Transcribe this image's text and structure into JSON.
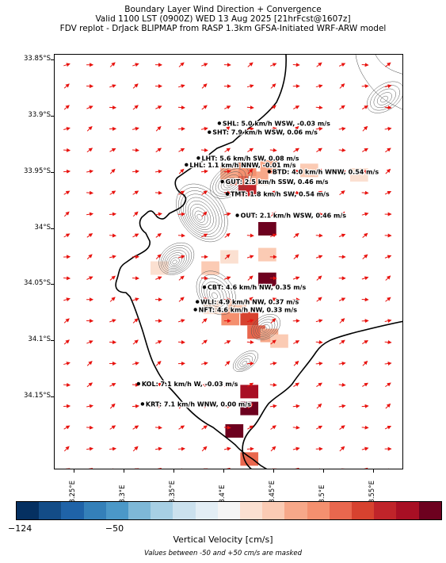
{
  "title": {
    "line1": "Boundary Layer Wind Direction + Convergence",
    "line2": "Valid 1100 LST (0900Z) WED 13 Aug 2025 [21hrFcst@1607z]",
    "line3": "FDV replot - DrJack BLIPMAP from RASP 1.3km GFSA-Initiated WRF-ARW model"
  },
  "axes": {
    "lon": {
      "min": 18.23,
      "max": 18.58
    },
    "lat": {
      "min": -34.215,
      "max": -33.845
    },
    "y_ticks": [
      {
        "value": -33.85,
        "label": "33.85°S"
      },
      {
        "value": -33.9,
        "label": "33.9°S"
      },
      {
        "value": -33.95,
        "label": "33.95°S"
      },
      {
        "value": -34.0,
        "label": "34°S"
      },
      {
        "value": -34.05,
        "label": "34.05°S"
      },
      {
        "value": -34.1,
        "label": "34.1°S"
      },
      {
        "value": -34.15,
        "label": "34.15°S"
      }
    ],
    "x_ticks": [
      {
        "value": 18.25,
        "label": "18.25°E"
      },
      {
        "value": 18.3,
        "label": "18.3°E"
      },
      {
        "value": 18.35,
        "label": "18.35°E"
      },
      {
        "value": 18.4,
        "label": "18.4°E"
      },
      {
        "value": 18.45,
        "label": "18.45°E"
      },
      {
        "value": 18.5,
        "label": "18.5°E"
      },
      {
        "value": 18.55,
        "label": "18.55°E"
      }
    ]
  },
  "stations": [
    {
      "name": "SHL",
      "text": "SHL: 5.0 km/h WSW, -0.03 m/s",
      "lon": 18.395,
      "lat": -33.906
    },
    {
      "name": "SHT",
      "text": "SHT: 7.9 km/h WSW, 0.06 m/s",
      "lon": 18.385,
      "lat": -33.914
    },
    {
      "name": "LHT",
      "text": "LHT: 5.6 km/h SW, 0.08 m/s",
      "lon": 18.374,
      "lat": -33.937
    },
    {
      "name": "LHL",
      "text": "LHL: 1.1 km/h NNW, -0.01 m/s",
      "lon": 18.362,
      "lat": -33.943
    },
    {
      "name": "BTD",
      "text": "BTD: 4.0 km/h WNW, 0.54 m/s",
      "lon": 18.445,
      "lat": -33.949
    },
    {
      "name": "GUT",
      "text": "GUT: 2.5 km/h SSW, 0.46 m/s",
      "lon": 18.398,
      "lat": -33.958
    },
    {
      "name": "TMT",
      "text": "TMT: 1.8 km/h SW, 0.54 m/s",
      "lon": 18.403,
      "lat": -33.969
    },
    {
      "name": "OUT",
      "text": "OUT: 2.1 km/h WSW, 0.46 m/s",
      "lon": 18.413,
      "lat": -33.988
    },
    {
      "name": "CBT",
      "text": "CBT: 4.6 km/h NW, 0.35 m/s",
      "lon": 18.38,
      "lat": -34.052
    },
    {
      "name": "WLI",
      "text": "WLI: 4.9 km/h NW, 0.37 m/s",
      "lon": 18.373,
      "lat": -34.065
    },
    {
      "name": "NFT",
      "text": "NFT: 4.6 km/h NW, 0.33 m/s",
      "lon": 18.371,
      "lat": -34.072
    },
    {
      "name": "KOL",
      "text": "KOL: 7.1 km/h W, -0.03 m/s",
      "lon": 18.314,
      "lat": -34.138
    },
    {
      "name": "KRT",
      "text": "KRT: 7.1 km/h WNW, 0.00 m/s",
      "lon": 18.318,
      "lat": -34.156
    }
  ],
  "convergence_cells": [
    {
      "lon": 18.443,
      "lat": -34.0,
      "value": 260
    },
    {
      "lon": 18.443,
      "lat": -34.045,
      "value": 200
    },
    {
      "lon": 18.423,
      "lat": -33.965,
      "value": 160
    },
    {
      "lon": 18.415,
      "lat": -33.955,
      "value": 120
    },
    {
      "lon": 18.435,
      "lat": -33.955,
      "value": 95
    },
    {
      "lon": 18.405,
      "lat": -33.95,
      "value": 85
    },
    {
      "lon": 18.423,
      "lat": -33.947,
      "value": 110
    },
    {
      "lon": 18.445,
      "lat": -33.945,
      "value": 90
    },
    {
      "lon": 18.485,
      "lat": -33.948,
      "value": 80
    },
    {
      "lon": 18.535,
      "lat": -33.952,
      "value": 60
    },
    {
      "lon": 18.443,
      "lat": -34.023,
      "value": 80
    },
    {
      "lon": 18.405,
      "lat": -34.025,
      "value": 60
    },
    {
      "lon": 18.386,
      "lat": -34.035,
      "value": 70
    },
    {
      "lon": 18.335,
      "lat": -34.035,
      "value": 55
    },
    {
      "lon": 18.388,
      "lat": -34.07,
      "value": 60
    },
    {
      "lon": 18.413,
      "lat": -34.07,
      "value": 75
    },
    {
      "lon": 18.406,
      "lat": -34.08,
      "value": 110
    },
    {
      "lon": 18.425,
      "lat": -34.08,
      "value": 150
    },
    {
      "lon": 18.432,
      "lat": -34.092,
      "value": 130
    },
    {
      "lon": 18.445,
      "lat": -34.095,
      "value": 100
    },
    {
      "lon": 18.455,
      "lat": -34.1,
      "value": 80
    },
    {
      "lon": 18.425,
      "lat": -34.145,
      "value": 180
    },
    {
      "lon": 18.425,
      "lat": -34.16,
      "value": 240
    },
    {
      "lon": 18.41,
      "lat": -34.18,
      "value": 220
    },
    {
      "lon": 18.425,
      "lat": -34.205,
      "value": 120
    }
  ],
  "wind_field": {
    "spacing_deg": 0.019,
    "mean_dir_from_deg": 250,
    "speed_kmh": 6
  },
  "colorbar": {
    "colors": [
      "#053061",
      "#134c87",
      "#1f63a8",
      "#3480b9",
      "#4b98c8",
      "#7eb8d7",
      "#a7cfe4",
      "#cbe1ee",
      "#e3eef5",
      "#f5f5f5",
      "#fbe0d1",
      "#fbcbb4",
      "#f7a889",
      "#f4906f",
      "#e9674e",
      "#d7422f",
      "#c0242a",
      "#a80f24",
      "#6d011f"
    ],
    "ticks": [
      {
        "value": -124,
        "label": "−124"
      },
      {
        "value": -50,
        "label": "−50"
      }
    ],
    "min": -124,
    "max": 200,
    "title": "Vertical Velocity [cm/s]",
    "note": "Values between -50 and +50 cm/s are masked"
  },
  "colors": {
    "coast": "#000000",
    "arrow": "#e8130f",
    "contour": "#555555"
  }
}
